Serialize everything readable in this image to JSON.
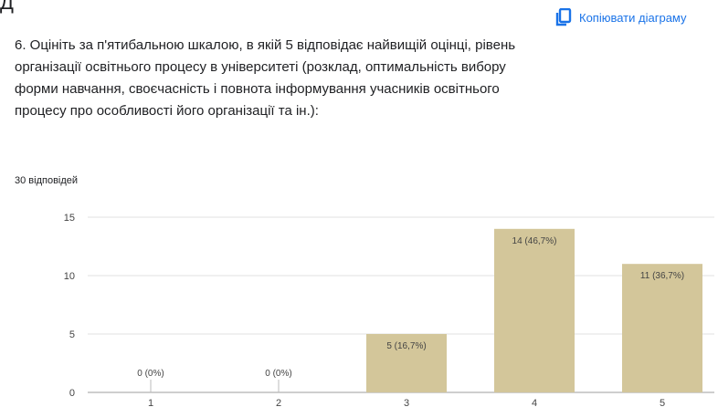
{
  "header": {
    "clipped_text": "Д",
    "copy_label": "Копіювати діаграму",
    "copy_icon": "copy-icon"
  },
  "question": {
    "text": "6. Оцініть за п'ятибальною шкалою,  в якій 5 відповідає найвищій оцінці, рівень організації освітнього процесу в університеті (розклад, оптимальність вибору форми навчання, своєчасність і повнота інформування учасників освітнього процесу про особливості його організації та ін.):",
    "responses": "30 відповідей"
  },
  "colors": {
    "accent": "#1a73e8",
    "bar": "#d3c69a",
    "grid": "#e0e0e0"
  },
  "chart_data": {
    "type": "bar",
    "categories": [
      "1",
      "2",
      "3",
      "4",
      "5"
    ],
    "values": [
      0,
      0,
      5,
      14,
      11
    ],
    "data_labels": [
      "0 (0%)",
      "0 (0%)",
      "5 (16,7%)",
      "14 (46,7%)",
      "11 (36,7%)"
    ],
    "y_ticks": [
      "0",
      "5",
      "10",
      "15"
    ],
    "ylim": [
      0,
      15
    ],
    "grid": true,
    "legend": "none"
  }
}
